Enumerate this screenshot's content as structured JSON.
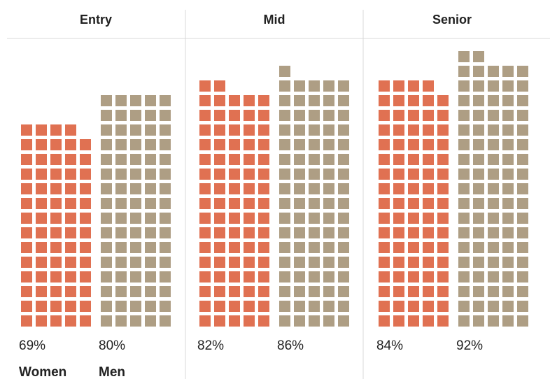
{
  "chart_data": {
    "type": "waffle",
    "unit": "percent",
    "groups": [
      "Entry",
      "Mid",
      "Senior"
    ],
    "series": [
      {
        "name": "Women",
        "color": "#E07152",
        "values": [
          69,
          82,
          84
        ]
      },
      {
        "name": "Men",
        "color": "#AE9E84",
        "values": [
          80,
          86,
          92
        ]
      }
    ],
    "value_labels": [
      [
        "69%",
        "80%"
      ],
      [
        "82%",
        "86%"
      ],
      [
        "84%",
        "92%"
      ]
    ],
    "legend": [
      "Women",
      "Men"
    ],
    "legend_placement": "bottom-left"
  }
}
